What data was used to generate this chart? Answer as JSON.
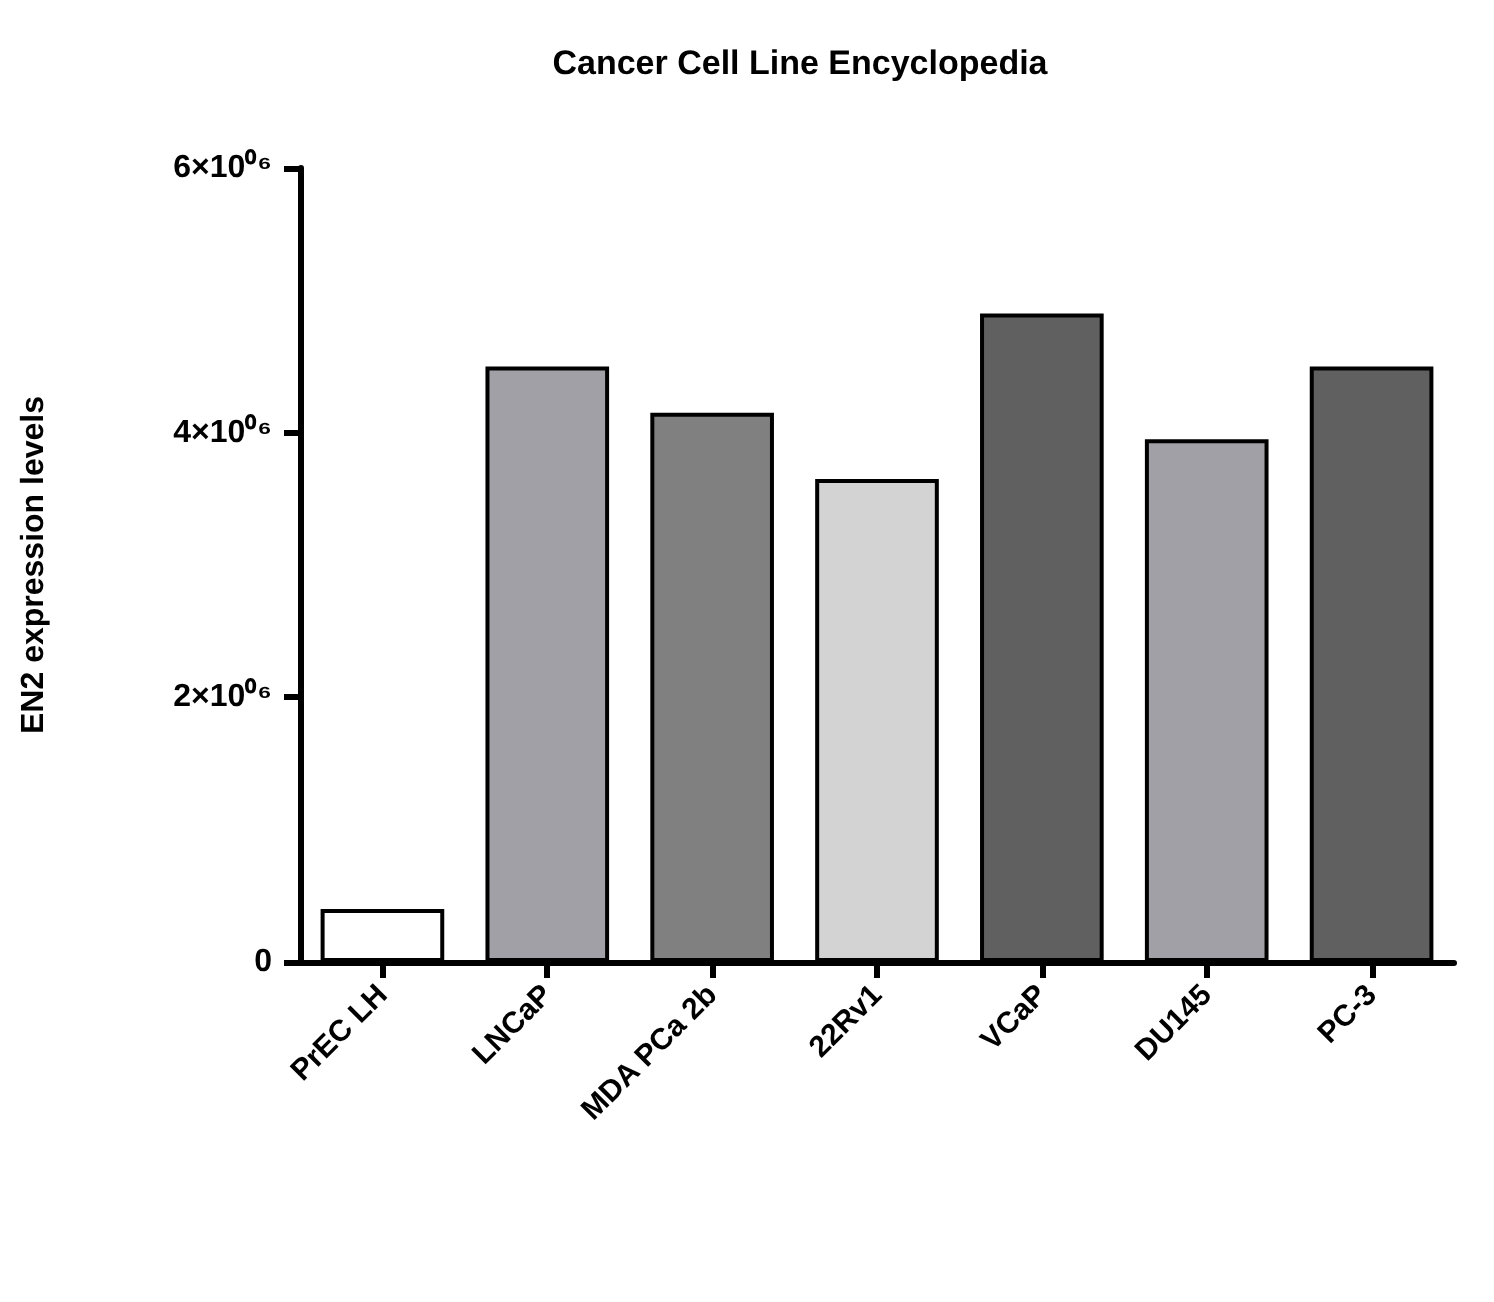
{
  "chart_data": {
    "type": "bar",
    "title": "Cancer Cell Line Encyclopedia",
    "ylabel": "EN2 expression levels",
    "categories": [
      "PrEC LH",
      "LNCaP",
      "MDA PCa 2b",
      "22Rv1",
      "VCaP",
      "DU145",
      "PC-3"
    ],
    "values": [
      400000,
      4500000,
      4150000,
      3650000,
      4900000,
      3950000,
      4500000
    ],
    "colors": [
      "#ffffff",
      "#a0a0a6",
      "#808080",
      "#d3d3d3",
      "#606060",
      "#a0a0a6",
      "#606060"
    ],
    "ylim": [
      0,
      6000000
    ],
    "yticks": [
      {
        "value": 0,
        "label": "0"
      },
      {
        "value": 2000000,
        "label": "2×10⁰⁶"
      },
      {
        "value": 4000000,
        "label": "4×10⁰⁶"
      },
      {
        "value": 6000000,
        "label": "6×10⁰⁶"
      }
    ],
    "grid": false
  }
}
